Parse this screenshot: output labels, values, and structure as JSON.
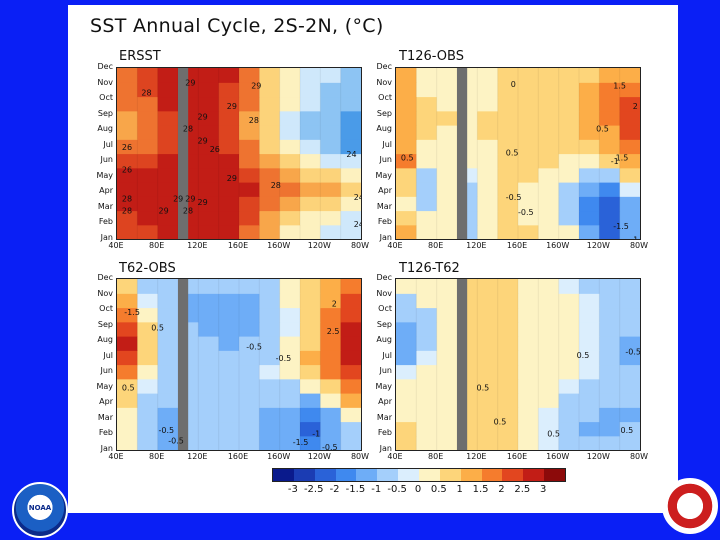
{
  "title": "SST Annual Cycle, 2S-2N, (°C)",
  "chart_data": {
    "type": "heatmap",
    "months": [
      "Jan",
      "Feb",
      "Mar",
      "Apr",
      "May",
      "Jun",
      "Jul",
      "Aug",
      "Sep",
      "Oct",
      "Nov",
      "Dec"
    ],
    "x_ticks": [
      "40E",
      "80E",
      "120E",
      "160E",
      "160W",
      "120W",
      "80W"
    ],
    "x_range": [
      40,
      280
    ],
    "land_mask": [
      100,
      110
    ],
    "panels": [
      {
        "name": "ersst",
        "title": "ERSST",
        "units": "°C",
        "contour_labels": [
          "29",
          "29",
          "28",
          "29",
          "26",
          "29",
          "26",
          "28",
          "28",
          "29",
          "29",
          "28",
          "29",
          "24",
          "29",
          "28",
          "24",
          "28",
          "26",
          "28",
          "29",
          "29",
          "24"
        ],
        "grid": [
          [
            28.6,
            28.6,
            28.9,
            29.0,
            29.1,
            28.9,
            28.0,
            26.5,
            25.0,
            24.5,
            24.2,
            23.8
          ],
          [
            28.7,
            28.8,
            29.1,
            29.2,
            29.3,
            29.1,
            28.3,
            27.0,
            25.8,
            25.2,
            24.8,
            24.3
          ],
          [
            28.9,
            29.0,
            29.3,
            29.4,
            29.4,
            29.2,
            28.6,
            27.6,
            26.8,
            26.3,
            25.8,
            25.2
          ],
          [
            29.0,
            29.2,
            29.4,
            29.6,
            29.5,
            29.3,
            28.8,
            28.0,
            27.5,
            27.0,
            26.6,
            25.8
          ],
          [
            28.9,
            29.1,
            29.3,
            29.5,
            29.4,
            29.1,
            28.6,
            27.6,
            26.9,
            26.3,
            25.6,
            24.9
          ],
          [
            28.4,
            28.7,
            29.0,
            29.3,
            29.2,
            28.9,
            28.2,
            27.0,
            25.9,
            25.1,
            24.4,
            23.5
          ],
          [
            27.6,
            28.1,
            28.7,
            29.1,
            29.1,
            28.7,
            27.8,
            26.3,
            25.0,
            24.0,
            23.3,
            22.4
          ],
          [
            27.0,
            27.7,
            28.5,
            29.0,
            29.0,
            28.5,
            27.4,
            25.8,
            24.4,
            23.4,
            22.6,
            21.8
          ],
          [
            27.2,
            27.9,
            28.6,
            29.0,
            29.0,
            28.5,
            27.3,
            25.6,
            24.3,
            23.3,
            22.6,
            22.0
          ],
          [
            27.6,
            28.1,
            28.8,
            29.1,
            29.1,
            28.6,
            27.5,
            25.9,
            24.6,
            23.7,
            23.0,
            22.5
          ],
          [
            27.9,
            28.3,
            28.9,
            29.2,
            29.2,
            28.7,
            27.7,
            26.1,
            24.9,
            24.0,
            23.4,
            23.0
          ],
          [
            28.2,
            28.4,
            28.9,
            29.2,
            29.2,
            28.8,
            27.8,
            26.3,
            25.0,
            24.2,
            23.6,
            23.4
          ]
        ]
      },
      {
        "name": "t126-obs",
        "title": "T126-OBS",
        "units": "°C",
        "contour_labels": [
          "0",
          "1.5",
          "2",
          "0.5",
          "1.5",
          "0.5",
          "0.5",
          "-1",
          "-0.5",
          "-0.5",
          "-1.5",
          "-1"
        ],
        "grid": [
          [
            1.0,
            0.3,
            0.4,
            -0.2,
            0.2,
            0.6,
            0.5,
            0.4,
            0.2,
            -1.0,
            -1.6,
            -0.6
          ],
          [
            0.6,
            0.1,
            0.3,
            -0.2,
            0.2,
            0.5,
            0.4,
            0.3,
            -0.2,
            -1.4,
            -2.0,
            -0.9
          ],
          [
            0.4,
            -0.1,
            0.2,
            -0.2,
            0.3,
            0.5,
            0.4,
            0.2,
            -0.5,
            -1.5,
            -1.8,
            -0.8
          ],
          [
            0.5,
            -0.2,
            0.1,
            -0.1,
            0.3,
            0.5,
            0.4,
            0.2,
            -0.3,
            -1.0,
            -1.2,
            0.0
          ],
          [
            0.8,
            -0.1,
            0.1,
            0.0,
            0.3,
            0.5,
            0.5,
            0.4,
            0.1,
            -0.3,
            -0.2,
            0.8
          ],
          [
            1.5,
            0.1,
            0.2,
            0.1,
            0.4,
            0.6,
            0.5,
            0.5,
            0.4,
            0.3,
            0.6,
            1.3
          ],
          [
            1.3,
            0.3,
            0.3,
            0.2,
            0.4,
            0.6,
            0.6,
            0.6,
            0.6,
            0.7,
            1.0,
            1.6
          ],
          [
            1.0,
            0.5,
            0.4,
            0.3,
            0.5,
            0.6,
            0.6,
            0.7,
            0.8,
            1.0,
            1.4,
            2.0
          ],
          [
            1.4,
            0.6,
            0.5,
            0.3,
            0.5,
            0.6,
            0.6,
            0.7,
            0.9,
            1.2,
            1.6,
            2.2
          ],
          [
            1.2,
            0.5,
            0.4,
            0.3,
            0.4,
            0.5,
            0.6,
            0.7,
            0.9,
            1.2,
            1.6,
            2.0
          ],
          [
            1.0,
            0.4,
            0.3,
            0.2,
            0.4,
            0.5,
            0.5,
            0.6,
            0.8,
            1.1,
            1.6,
            1.7
          ],
          [
            1.0,
            0.4,
            0.3,
            0.2,
            0.4,
            0.5,
            0.5,
            0.6,
            0.7,
            0.9,
            1.2,
            1.2
          ]
        ]
      },
      {
        "name": "t62-obs",
        "title": "T62-OBS",
        "units": "°C",
        "contour_labels": [
          "-1.5",
          "2",
          "2.5",
          "-0.5",
          "-0.5",
          "0.5",
          "-0.5",
          "-0.5",
          "-1",
          "-1.5",
          "-0.5",
          "0.5"
        ],
        "grid": [
          [
            0.3,
            -0.5,
            -0.6,
            -0.2,
            -0.3,
            -0.4,
            -0.5,
            -0.6,
            -0.7,
            -1.2,
            -0.8,
            -0.3
          ],
          [
            0.2,
            -0.5,
            -0.7,
            -0.3,
            -0.3,
            -0.4,
            -0.5,
            -0.7,
            -1.0,
            -1.6,
            -1.0,
            -0.2
          ],
          [
            0.3,
            -0.4,
            -0.6,
            -0.3,
            -0.3,
            -0.4,
            -0.5,
            -0.6,
            -0.9,
            -1.3,
            -0.6,
            0.2
          ],
          [
            0.5,
            -0.2,
            -0.5,
            -0.3,
            -0.3,
            -0.4,
            -0.4,
            -0.5,
            -0.5,
            -0.6,
            0.1,
            1.0
          ],
          [
            0.8,
            0.0,
            -0.4,
            -0.3,
            -0.3,
            -0.3,
            -0.3,
            -0.2,
            -0.1,
            0.2,
            0.8,
            1.8
          ],
          [
            1.6,
            0.2,
            -0.3,
            -0.3,
            -0.3,
            -0.3,
            -0.2,
            0.0,
            0.3,
            0.8,
            1.5,
            2.4
          ],
          [
            2.2,
            0.5,
            -0.2,
            -0.3,
            -0.4,
            -0.4,
            -0.3,
            -0.1,
            0.3,
            1.0,
            1.9,
            2.8
          ],
          [
            2.5,
            0.8,
            -0.1,
            -0.4,
            -0.5,
            -0.6,
            -0.5,
            -0.3,
            0.1,
            0.9,
            1.9,
            2.9
          ],
          [
            2.2,
            0.6,
            -0.2,
            -0.5,
            -0.6,
            -0.8,
            -0.7,
            -0.4,
            0.0,
            0.8,
            1.8,
            2.7
          ],
          [
            1.6,
            0.3,
            -0.3,
            -0.6,
            -0.7,
            -0.8,
            -0.7,
            -0.4,
            0.0,
            0.7,
            1.6,
            2.4
          ],
          [
            1.0,
            0.0,
            -0.4,
            -0.6,
            -0.7,
            -0.7,
            -0.6,
            -0.3,
            0.1,
            0.7,
            1.4,
            2.0
          ],
          [
            0.6,
            -0.2,
            -0.5,
            -0.4,
            -0.5,
            -0.5,
            -0.4,
            -0.2,
            0.1,
            0.6,
            1.1,
            1.5
          ]
        ]
      },
      {
        "name": "t126-t62",
        "title": "T126-T62",
        "units": "°C",
        "contour_labels": [
          "0.5",
          "-0.5",
          "0.5",
          "0.5",
          "0.5",
          "0.5"
        ],
        "grid": [
          [
            0.7,
            0.4,
            0.3,
            0.6,
            0.7,
            0.5,
            0.2,
            0.0,
            -0.3,
            -0.4,
            -0.5,
            -0.2
          ],
          [
            0.5,
            0.4,
            0.3,
            0.6,
            0.7,
            0.5,
            0.2,
            0.0,
            -0.3,
            -0.6,
            -0.8,
            -0.4
          ],
          [
            0.3,
            0.3,
            0.3,
            0.6,
            0.7,
            0.5,
            0.2,
            0.0,
            -0.3,
            -0.5,
            -0.7,
            -0.6
          ],
          [
            0.2,
            0.2,
            0.3,
            0.6,
            0.7,
            0.5,
            0.3,
            0.1,
            -0.2,
            -0.3,
            -0.4,
            -0.5
          ],
          [
            0.1,
            0.1,
            0.3,
            0.6,
            0.7,
            0.5,
            0.3,
            0.2,
            0.0,
            -0.1,
            -0.2,
            -0.4
          ],
          [
            0.0,
            0.1,
            0.3,
            0.6,
            0.7,
            0.6,
            0.4,
            0.2,
            0.1,
            0.0,
            -0.2,
            -0.5
          ],
          [
            -0.6,
            0.0,
            0.3,
            0.6,
            0.7,
            0.6,
            0.4,
            0.3,
            0.1,
            0.0,
            -0.3,
            -0.7
          ],
          [
            -1.0,
            -0.3,
            0.2,
            0.5,
            0.7,
            0.6,
            0.4,
            0.3,
            0.1,
            0.0,
            -0.3,
            -0.6
          ],
          [
            -0.8,
            -0.3,
            0.2,
            0.5,
            0.7,
            0.6,
            0.4,
            0.2,
            0.1,
            0.0,
            -0.2,
            -0.4
          ],
          [
            -0.5,
            -0.1,
            0.2,
            0.6,
            0.7,
            0.6,
            0.4,
            0.2,
            0.1,
            0.0,
            -0.1,
            -0.3
          ],
          [
            -0.1,
            0.1,
            0.3,
            0.6,
            0.7,
            0.6,
            0.4,
            0.2,
            0.1,
            0.0,
            -0.1,
            -0.2
          ],
          [
            0.3,
            0.2,
            0.3,
            0.6,
            0.7,
            0.5,
            0.3,
            0.1,
            0.0,
            -0.1,
            -0.2,
            -0.2
          ]
        ]
      }
    ],
    "colorbar": {
      "labels": [
        "-3",
        "-2.5",
        "-2",
        "-1.5",
        "-1",
        "-0.5",
        "0",
        "0.5",
        "1",
        "1.5",
        "2",
        "2.5",
        "3"
      ],
      "colors": [
        "#0a1a8c",
        "#1b3cb3",
        "#2a62d8",
        "#3f89ef",
        "#6eadf7",
        "#a4cffb",
        "#dbeefd",
        "#fdf3c4",
        "#fdd57a",
        "#fcae48",
        "#f57c2d",
        "#e2461f",
        "#c21d16",
        "#8c0a0a"
      ]
    },
    "ersst_colors": [
      "#4a9be8",
      "#8dc4f3",
      "#cfe8fb",
      "#fdf1bf",
      "#fcd37a",
      "#f8a64a",
      "#ee7330",
      "#dd4420",
      "#c21d16"
    ],
    "ersst_levels": [
      22.5,
      23.5,
      24.5,
      25.5,
      26.5,
      27.5,
      28.3,
      28.8,
      29.2
    ]
  },
  "logos": {
    "noaa": "NOAA"
  }
}
